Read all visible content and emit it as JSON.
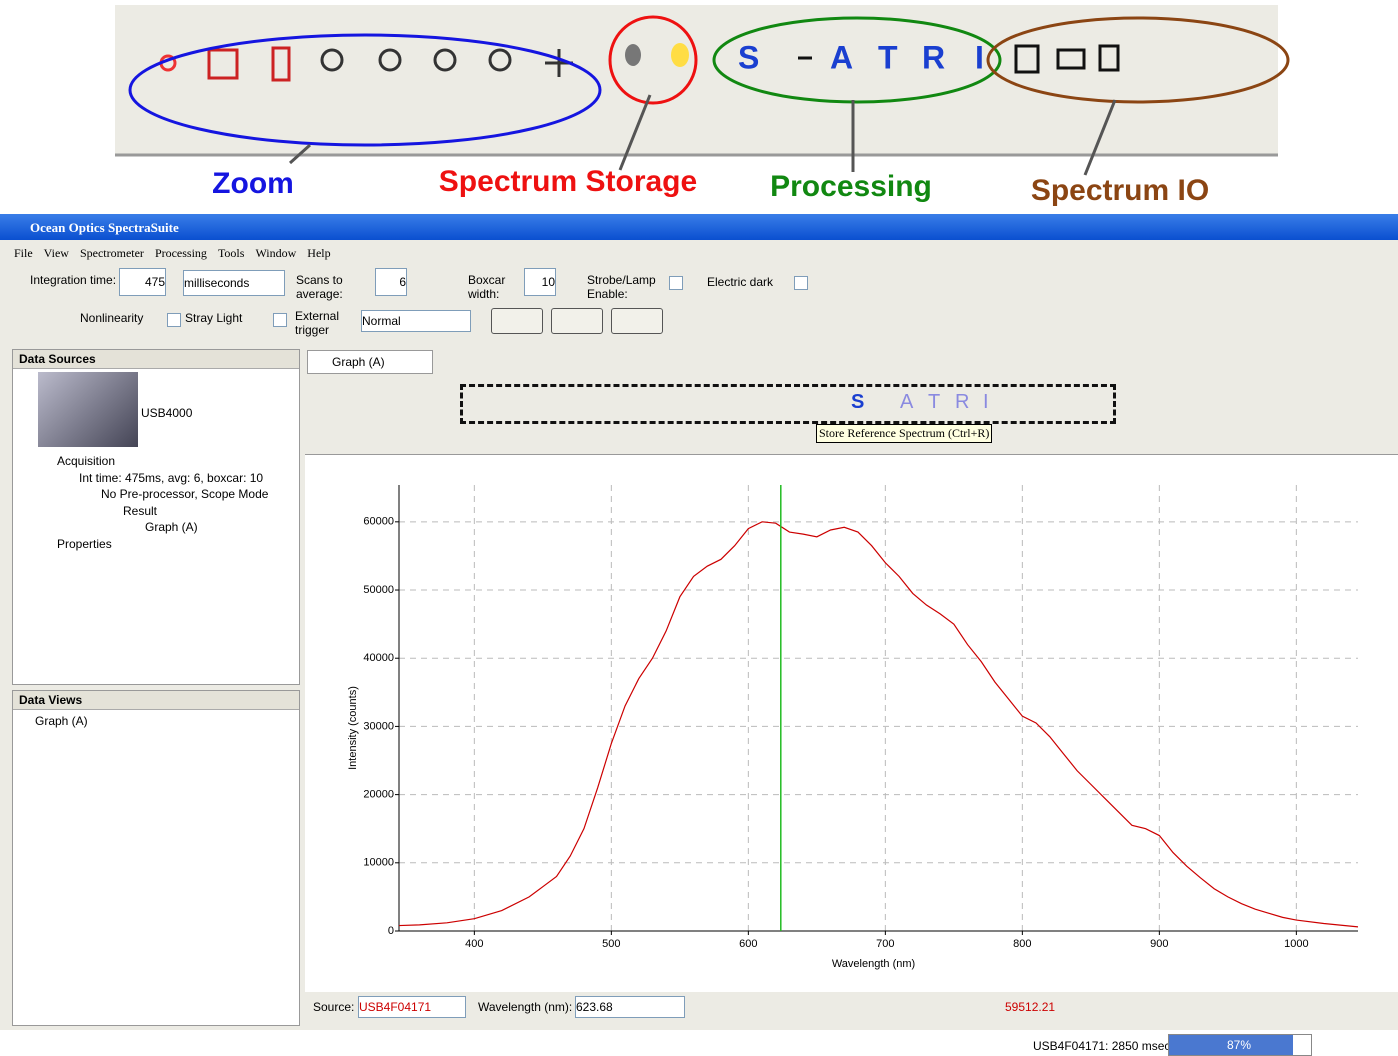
{
  "annotations": {
    "zoom": "Zoom",
    "storage": "Spectrum Storage",
    "processing": "Processing",
    "io": "Spectrum IO"
  },
  "toolbar_letters": [
    "S",
    "A",
    "T",
    "R",
    "I"
  ],
  "window": {
    "title": "Ocean Optics SpectraSuite",
    "menu": [
      "File",
      "View",
      "Spectrometer",
      "Processing",
      "Tools",
      "Window",
      "Help"
    ]
  },
  "controls": {
    "integration_label": "Integration time:",
    "integration_value": 475,
    "integration_unit": "milliseconds",
    "scans_label": "Scans to average:",
    "scans_value": 6,
    "boxcar_label": "Boxcar width:",
    "boxcar_value": 10,
    "strobe_label": "Strobe/Lamp Enable:",
    "dark_label": "Electric dark",
    "nonlinearity_label": "Nonlinearity",
    "stray_label": "Stray Light",
    "trigger_label": "External trigger",
    "trigger_mode": "Normal"
  },
  "data_sources": {
    "title": "Data Sources",
    "device": "USB4000",
    "tree": [
      "Acquisition",
      "Int time: 475ms, avg: 6, boxcar: 10",
      "No Pre-processor, Scope Mode",
      "Result",
      "Graph (A)",
      "Properties"
    ]
  },
  "data_views": {
    "title": "Data Views",
    "tree": [
      "Graph (A)"
    ]
  },
  "graph_tab": "Graph (A)",
  "tooltip": "Store Reference Spectrum (Ctrl+R)",
  "chart_data": {
    "type": "line",
    "x_label": "Wavelength (nm)",
    "y_label": "Intensity (counts)",
    "color": "#cc0000",
    "x": [
      345,
      360,
      380,
      400,
      420,
      440,
      450,
      460,
      470,
      480,
      490,
      500,
      510,
      520,
      530,
      540,
      550,
      560,
      570,
      580,
      590,
      600,
      610,
      620,
      630,
      640,
      650,
      660,
      670,
      680,
      690,
      700,
      710,
      720,
      730,
      740,
      750,
      760,
      770,
      780,
      790,
      800,
      810,
      820,
      830,
      840,
      850,
      860,
      870,
      880,
      890,
      900,
      910,
      920,
      930,
      940,
      950,
      960,
      970,
      980,
      990,
      1000,
      1020,
      1045
    ],
    "values": [
      800,
      900,
      1200,
      1800,
      3000,
      5000,
      6500,
      8000,
      11000,
      15000,
      21000,
      27500,
      33000,
      37000,
      40000,
      44000,
      49000,
      52000,
      53500,
      54500,
      56500,
      59000,
      60000,
      59800,
      58500,
      58200,
      57800,
      58800,
      59200,
      58500,
      56500,
      54000,
      52000,
      49500,
      47800,
      46500,
      45000,
      42000,
      39500,
      36500,
      34000,
      31500,
      30500,
      28500,
      26000,
      23500,
      21500,
      19500,
      17500,
      15500,
      15000,
      14000,
      11500,
      9500,
      7800,
      6200,
      5000,
      4000,
      3200,
      2600,
      2000,
      1600,
      1100,
      600
    ],
    "xlim": [
      345,
      1045
    ],
    "ylim": [
      0,
      65400
    ],
    "xticks": [
      400,
      500,
      600,
      700,
      800,
      900,
      1000
    ],
    "yticks": [
      0,
      10000,
      20000,
      30000,
      40000,
      50000,
      60000
    ],
    "grid": true,
    "cursor_color": "#22bb22"
  },
  "status": {
    "source_label": "Source:",
    "source": "USB4F04171",
    "wavelength_label": "Wavelength (nm):",
    "wavelength": 623.68,
    "intensity": 59512.21
  },
  "status_bar": {
    "device": "USB4F04171: 2850 msec",
    "progress": {
      "value": 87,
      "label": "87%"
    }
  }
}
